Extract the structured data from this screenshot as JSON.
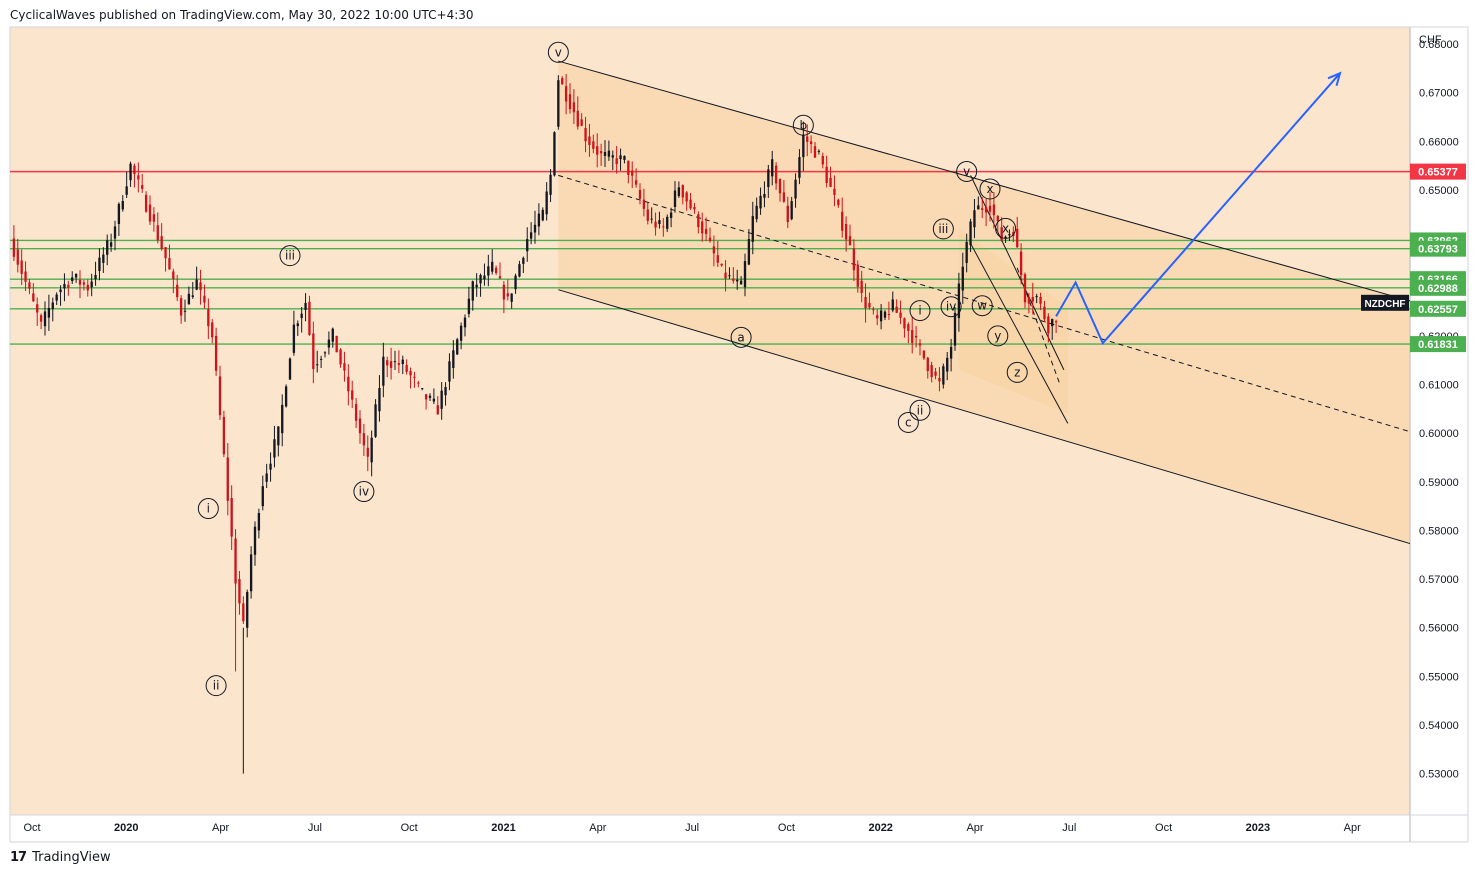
{
  "header": {
    "published_text": "CyclicalWaves published on TradingView.com, May 30, 2022 10:00 UTC+4:30"
  },
  "footer": {
    "brand": "TradingView",
    "logo_glyph": "𝟭𝟳"
  },
  "colors": {
    "background": "#fbe6cd",
    "channel_fill": "#f7cd96",
    "up_candle": "#131722",
    "down_candle": "#d1121a",
    "resistance": "#f23645",
    "support": "#4caf50",
    "projection": "#2962ff",
    "channel_line": "#131722"
  },
  "chart_data": {
    "type": "candlestick",
    "symbol": "NZDCHF",
    "currency_label": "CHF",
    "time_axis_labels": [
      "Oct",
      "2020",
      "Apr",
      "Jul",
      "Oct",
      "2021",
      "Apr",
      "Jul",
      "Oct",
      "2022",
      "Apr",
      "Jul",
      "Oct",
      "2023",
      "Apr"
    ],
    "time_axis_bold": [
      "2020",
      "2021",
      "2022",
      "2023"
    ],
    "ylim": [
      0.5215,
      0.6835
    ],
    "y_ticks": [
      "0.53000",
      "0.54000",
      "0.55000",
      "0.56000",
      "0.57000",
      "0.58000",
      "0.59000",
      "0.60000",
      "0.61000",
      "0.62000",
      "0.63000",
      "0.64000",
      "0.65000",
      "0.66000",
      "0.67000",
      "0.68000"
    ],
    "grid": false,
    "price_tag": {
      "label": "NZDCHF",
      "value": 0.6268
    },
    "horizontal_levels": [
      {
        "value": 0.65377,
        "label": "0.65377",
        "kind": "resistance"
      },
      {
        "value": 0.63962,
        "label": "0.63962",
        "kind": "support"
      },
      {
        "value": 0.63793,
        "label": "0.63793",
        "kind": "support"
      },
      {
        "value": 0.63166,
        "label": "0.63166",
        "kind": "support"
      },
      {
        "value": 0.62988,
        "label": "0.62988",
        "kind": "support"
      },
      {
        "value": 0.62557,
        "label": "0.62557",
        "kind": "support"
      },
      {
        "value": 0.61831,
        "label": "0.61831",
        "kind": "support"
      }
    ],
    "anchors": [
      [
        0,
        0.64
      ],
      [
        4,
        0.631
      ],
      [
        8,
        0.622
      ],
      [
        12,
        0.629
      ],
      [
        16,
        0.632
      ],
      [
        20,
        0.63
      ],
      [
        26,
        0.64
      ],
      [
        31,
        0.655
      ],
      [
        36,
        0.645
      ],
      [
        40,
        0.636
      ],
      [
        44,
        0.625
      ],
      [
        48,
        0.631
      ],
      [
        52,
        0.62
      ],
      [
        55,
        0.595
      ],
      [
        58,
        0.57
      ],
      [
        60,
        0.56
      ],
      [
        62,
        0.575
      ],
      [
        65,
        0.59
      ],
      [
        69,
        0.6
      ],
      [
        73,
        0.622
      ],
      [
        76,
        0.627
      ],
      [
        78,
        0.614
      ],
      [
        83,
        0.62
      ],
      [
        88,
        0.606
      ],
      [
        92,
        0.594
      ],
      [
        96,
        0.615
      ],
      [
        101,
        0.614
      ],
      [
        106,
        0.608
      ],
      [
        110,
        0.605
      ],
      [
        115,
        0.619
      ],
      [
        119,
        0.63
      ],
      [
        124,
        0.634
      ],
      [
        128,
        0.627
      ],
      [
        133,
        0.64
      ],
      [
        137,
        0.645
      ],
      [
        139,
        0.653
      ],
      [
        141,
        0.673
      ],
      [
        144,
        0.668
      ],
      [
        148,
        0.661
      ],
      [
        152,
        0.657
      ],
      [
        158,
        0.656
      ],
      [
        164,
        0.644
      ],
      [
        168,
        0.642
      ],
      [
        172,
        0.651
      ],
      [
        178,
        0.642
      ],
      [
        183,
        0.633
      ],
      [
        188,
        0.63
      ],
      [
        191,
        0.644
      ],
      [
        196,
        0.655
      ],
      [
        200,
        0.644
      ],
      [
        204,
        0.661
      ],
      [
        208,
        0.657
      ],
      [
        212,
        0.648
      ],
      [
        216,
        0.638
      ],
      [
        219,
        0.628
      ],
      [
        223,
        0.623
      ],
      [
        227,
        0.626
      ],
      [
        232,
        0.62
      ],
      [
        236,
        0.614
      ],
      [
        239,
        0.61
      ],
      [
        242,
        0.618
      ],
      [
        245,
        0.635
      ],
      [
        248,
        0.646
      ],
      [
        252,
        0.647
      ],
      [
        255,
        0.64
      ],
      [
        258,
        0.642
      ],
      [
        261,
        0.628
      ],
      [
        264,
        0.628
      ],
      [
        267,
        0.622
      ],
      [
        269,
        0.624
      ]
    ],
    "time_index_range": [
      0,
      360
    ],
    "projection_path": [
      [
        269,
        0.624
      ],
      [
        274,
        0.631
      ],
      [
        281,
        0.6185
      ],
      [
        342,
        0.674
      ]
    ],
    "dashed_paths": [
      [
        [
          141,
          0.653
        ],
        [
          360,
          0.6003
        ]
      ],
      [
        [
          259,
          0.634
        ],
        [
          270,
          0.61
        ]
      ]
    ],
    "channel_upper": [
      [
        141,
        0.6765
      ],
      [
        360,
        0.6272
      ]
    ],
    "channel_lower": [
      [
        141,
        0.6295
      ],
      [
        360,
        0.5773
      ]
    ],
    "channel_fill": [
      [
        141,
        0.6765
      ],
      [
        360,
        0.6272
      ],
      [
        360,
        0.5773
      ],
      [
        141,
        0.6295
      ]
    ],
    "channel_fill_2": [
      [
        244,
        0.642
      ],
      [
        272,
        0.626
      ],
      [
        272,
        0.604
      ],
      [
        244,
        0.613
      ]
    ],
    "inner_channel": [
      [
        [
          247,
          0.653
        ],
        [
          271,
          0.613
        ]
      ],
      [
        [
          247,
          0.639
        ],
        [
          272,
          0.602
        ]
      ]
    ],
    "wave_labels": [
      {
        "text": "v",
        "t": 141,
        "v": 0.6783
      },
      {
        "text": "b",
        "t": 204,
        "v": 0.6633
      },
      {
        "text": "iii",
        "t": 72,
        "v": 0.6365
      },
      {
        "text": "a",
        "t": 188,
        "v": 0.6197
      },
      {
        "text": "iv",
        "t": 91,
        "v": 0.588
      },
      {
        "text": "i",
        "t": 51,
        "v": 0.5845
      },
      {
        "text": "ii",
        "t": 53,
        "v": 0.5481
      },
      {
        "text": "v",
        "t": 246,
        "v": 0.6538
      },
      {
        "text": "x",
        "t": 252,
        "v": 0.6502
      },
      {
        "text": "iii",
        "t": 240,
        "v": 0.642
      },
      {
        "text": "x",
        "t": 256,
        "v": 0.6421
      },
      {
        "text": "i",
        "t": 234,
        "v": 0.6252
      },
      {
        "text": "iv",
        "t": 242,
        "v": 0.626
      },
      {
        "text": "w",
        "t": 250,
        "v": 0.6262
      },
      {
        "text": "y",
        "t": 254,
        "v": 0.62
      },
      {
        "text": "z",
        "t": 259,
        "v": 0.6125
      },
      {
        "text": "ii",
        "t": 234,
        "v": 0.6047
      },
      {
        "text": "c",
        "t": 231,
        "v": 0.6022
      }
    ]
  }
}
